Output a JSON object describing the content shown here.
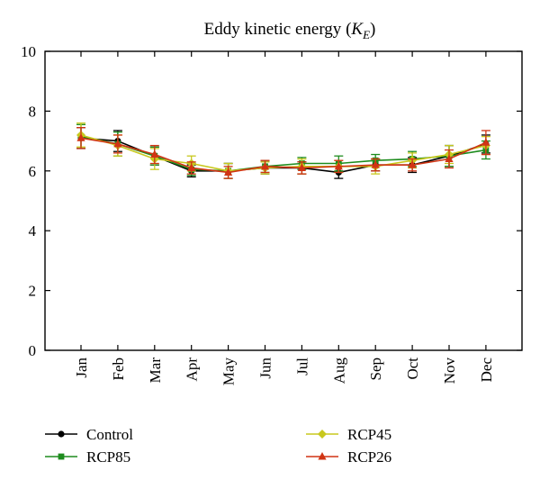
{
  "chart_data": {
    "type": "line",
    "title": "Eddy kinetic energy",
    "title_symbol": "K",
    "title_symbol_sub": "E",
    "categories": [
      "Jan",
      "Feb",
      "Mar",
      "Apr",
      "May",
      "Jun",
      "Jul",
      "Aug",
      "Sep",
      "Oct",
      "Nov",
      "Dec"
    ],
    "ylim": [
      0,
      10
    ],
    "yticks": [
      "0",
      "2",
      "4",
      "6",
      "8",
      "10"
    ],
    "grid": false,
    "legend_position": "bottom",
    "series": [
      {
        "name": "Control",
        "color": "#000000",
        "marker": "circle",
        "values": [
          7.1,
          7.0,
          6.5,
          6.0,
          6.0,
          6.1,
          6.1,
          5.95,
          6.2,
          6.2,
          6.5,
          6.9
        ],
        "errors": [
          0.35,
          0.35,
          0.3,
          0.2,
          0.25,
          0.2,
          0.2,
          0.2,
          0.2,
          0.25,
          0.35,
          0.3
        ]
      },
      {
        "name": "RCP85",
        "color": "#1e8c1e",
        "marker": "square",
        "values": [
          7.15,
          6.9,
          6.5,
          6.05,
          6.0,
          6.15,
          6.25,
          6.25,
          6.35,
          6.4,
          6.5,
          6.7
        ],
        "errors": [
          0.4,
          0.4,
          0.3,
          0.2,
          0.25,
          0.2,
          0.2,
          0.25,
          0.2,
          0.25,
          0.35,
          0.3
        ]
      },
      {
        "name": "RCP45",
        "color": "#c8c81e",
        "marker": "diamond",
        "values": [
          7.2,
          6.85,
          6.4,
          6.25,
          6.0,
          6.1,
          6.15,
          6.15,
          6.15,
          6.35,
          6.55,
          6.85
        ],
        "errors": [
          0.4,
          0.35,
          0.35,
          0.25,
          0.25,
          0.2,
          0.25,
          0.2,
          0.25,
          0.25,
          0.3,
          0.3
        ]
      },
      {
        "name": "RCP26",
        "color": "#d03414",
        "marker": "triangle",
        "values": [
          7.1,
          6.9,
          6.55,
          6.1,
          5.95,
          6.15,
          6.1,
          6.15,
          6.2,
          6.2,
          6.4,
          6.95
        ],
        "errors": [
          0.35,
          0.3,
          0.3,
          0.2,
          0.2,
          0.2,
          0.2,
          0.2,
          0.2,
          0.2,
          0.3,
          0.4
        ]
      }
    ]
  }
}
